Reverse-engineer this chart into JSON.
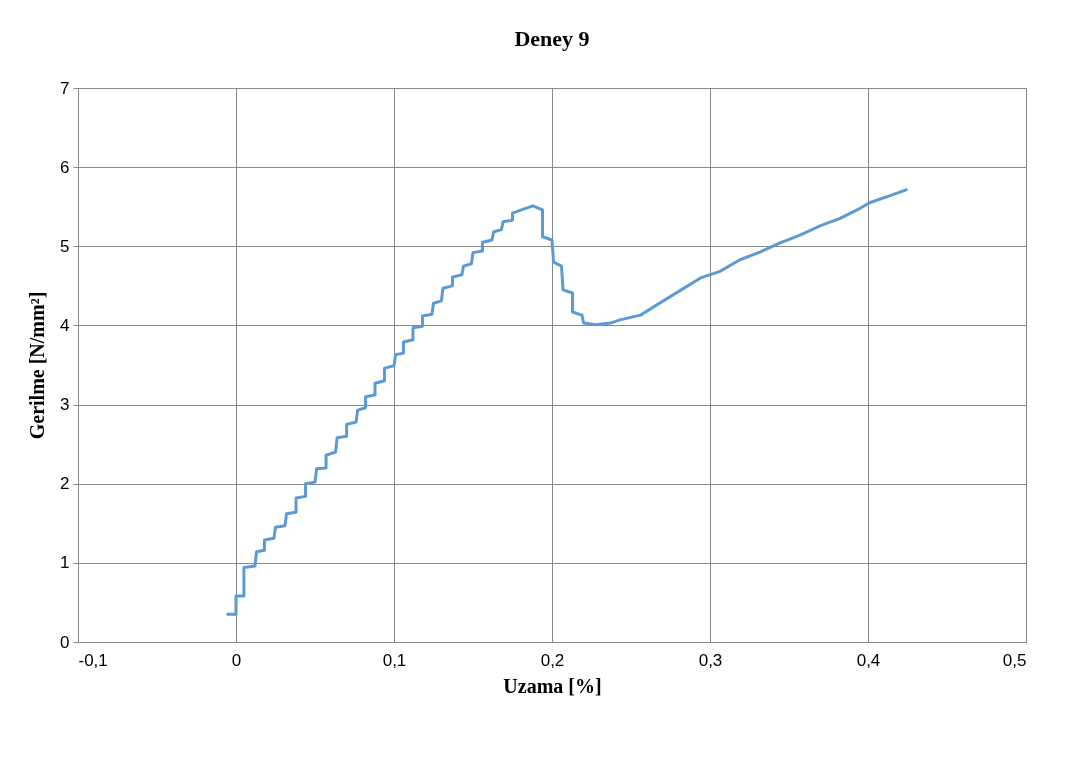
{
  "chart_data": {
    "type": "line",
    "title": "Deney 9",
    "xlabel": "Uzama [%]",
    "ylabel": "Gerilme [N/mm²]",
    "x": [
      -0.006,
      0.0,
      0.0,
      0.005,
      0.005,
      0.012,
      0.013,
      0.018,
      0.018,
      0.024,
      0.025,
      0.031,
      0.032,
      0.038,
      0.038,
      0.044,
      0.044,
      0.05,
      0.051,
      0.057,
      0.057,
      0.063,
      0.064,
      0.07,
      0.07,
      0.076,
      0.077,
      0.082,
      0.082,
      0.088,
      0.088,
      0.094,
      0.094,
      0.1,
      0.101,
      0.106,
      0.106,
      0.112,
      0.112,
      0.118,
      0.118,
      0.124,
      0.125,
      0.13,
      0.131,
      0.137,
      0.137,
      0.143,
      0.144,
      0.149,
      0.15,
      0.156,
      0.156,
      0.162,
      0.163,
      0.168,
      0.169,
      0.175,
      0.175,
      0.182,
      0.188,
      0.194,
      0.194,
      0.2,
      0.201,
      0.206,
      0.207,
      0.213,
      0.213,
      0.219,
      0.22,
      0.228,
      0.237,
      0.243,
      0.256,
      0.268,
      0.281,
      0.294,
      0.306,
      0.319,
      0.332,
      0.344,
      0.357,
      0.37,
      0.382,
      0.395,
      0.401,
      0.414,
      0.425
    ],
    "series": [
      {
        "color": "#5b9bd5",
        "values": [
          0.35,
          0.35,
          0.58,
          0.58,
          0.94,
          0.96,
          1.14,
          1.16,
          1.29,
          1.31,
          1.45,
          1.47,
          1.62,
          1.64,
          1.82,
          1.84,
          2.0,
          2.02,
          2.19,
          2.2,
          2.36,
          2.4,
          2.58,
          2.6,
          2.75,
          2.78,
          2.93,
          2.96,
          3.1,
          3.12,
          3.27,
          3.3,
          3.46,
          3.49,
          3.63,
          3.65,
          3.79,
          3.82,
          3.97,
          3.99,
          4.12,
          4.14,
          4.28,
          4.31,
          4.47,
          4.5,
          4.61,
          4.64,
          4.75,
          4.78,
          4.92,
          4.94,
          5.05,
          5.08,
          5.18,
          5.21,
          5.31,
          5.33,
          5.42,
          5.47,
          5.51,
          5.46,
          5.12,
          5.08,
          4.8,
          4.75,
          4.45,
          4.41,
          4.17,
          4.13,
          4.03,
          4.01,
          4.03,
          4.07,
          4.13,
          4.28,
          4.44,
          4.6,
          4.68,
          4.83,
          4.93,
          5.04,
          5.14,
          5.26,
          5.35,
          5.48,
          5.55,
          5.64,
          5.72
        ]
      }
    ],
    "xlim": [
      -0.1,
      0.5
    ],
    "xticks": [
      {
        "value": -0.1,
        "label": "-0,1"
      },
      {
        "value": 0,
        "label": "0"
      },
      {
        "value": 0.1,
        "label": "0,1"
      },
      {
        "value": 0.2,
        "label": "0,2"
      },
      {
        "value": 0.3,
        "label": "0,3"
      },
      {
        "value": 0.4,
        "label": "0,4"
      },
      {
        "value": 0.5,
        "label": "0,5"
      }
    ],
    "ylim": [
      0,
      7
    ],
    "yticks": [
      0,
      1,
      2,
      3,
      4,
      5,
      6,
      7
    ],
    "grid": true,
    "marker": "none",
    "line_style": "solid"
  }
}
